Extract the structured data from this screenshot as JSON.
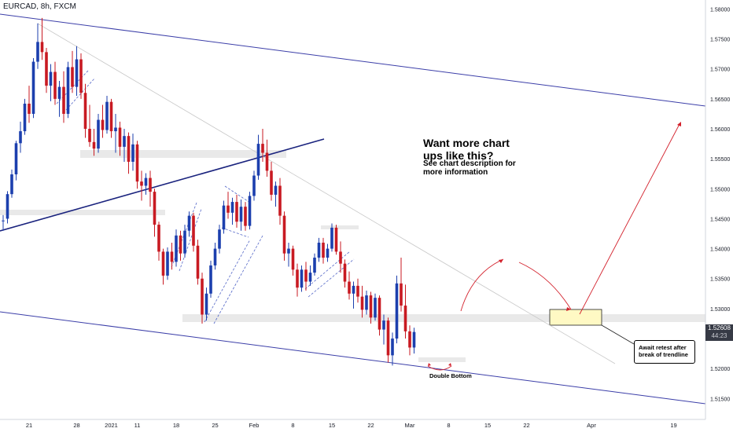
{
  "header": {
    "symbol_label": "EURCAD, 8h, FXCM"
  },
  "colors": {
    "bull": "#1c3fae",
    "bear": "#c81a22",
    "channel": "#3b3ea8",
    "trend": "#1a237e",
    "arrow": "#d3212c",
    "zone": "#e9e9e9",
    "target_fill": "#fff9c4"
  },
  "annotations": {
    "headline_line1": "Want more chart",
    "headline_line2": "ups like this?",
    "subline1": "See chart description for",
    "subline2": "more information",
    "callout_line1": "Await retest after",
    "callout_line2": "break of trendline",
    "double_bottom": "Double Bottom"
  },
  "price_tag": {
    "price": "1.52608",
    "countdown": "44:23"
  },
  "chart_data": {
    "type": "candlestick",
    "symbol": "EURCAD",
    "timeframe": "8h",
    "source": "FXCM",
    "ylim": [
      1.5115,
      1.5815
    ],
    "y_ticks": [
      "1.58000",
      "1.57500",
      "1.57000",
      "1.56500",
      "1.56000",
      "1.55500",
      "1.55000",
      "1.54500",
      "1.54000",
      "1.53500",
      "1.53000",
      "1.52500",
      "1.52000",
      "1.51500"
    ],
    "y_tick_values": [
      1.58,
      1.575,
      1.57,
      1.565,
      1.56,
      1.555,
      1.55,
      1.545,
      1.54,
      1.535,
      1.53,
      1.525,
      1.52,
      1.515
    ],
    "x_ticks": [
      "21",
      "28",
      "2021",
      "11",
      "18",
      "25",
      "Feb",
      "8",
      "15",
      "22",
      "Mar",
      "8",
      "15",
      "22",
      "Apr",
      "19"
    ],
    "x_tick_idx": [
      6,
      17,
      25,
      31,
      40,
      49,
      58,
      67,
      76,
      85,
      94,
      103,
      112,
      121,
      136,
      155
    ],
    "ohlc": [
      [
        1.5447,
        1.5456,
        1.543,
        1.5447
      ],
      [
        1.545,
        1.5496,
        1.5442,
        1.5491
      ],
      [
        1.5491,
        1.5532,
        1.5485,
        1.5524
      ],
      [
        1.5524,
        1.558,
        1.5514,
        1.5576
      ],
      [
        1.5576,
        1.5612,
        1.556,
        1.5596
      ],
      [
        1.5596,
        1.565,
        1.559,
        1.5642
      ],
      [
        1.5642,
        1.5672,
        1.561,
        1.5625
      ],
      [
        1.5625,
        1.5718,
        1.5618,
        1.5712
      ],
      [
        1.5712,
        1.5776,
        1.57,
        1.5745
      ],
      [
        1.5745,
        1.5785,
        1.5715,
        1.5728
      ],
      [
        1.5728,
        1.5735,
        1.566,
        1.5672
      ],
      [
        1.5672,
        1.5708,
        1.5646,
        1.5695
      ],
      [
        1.5695,
        1.5712,
        1.564,
        1.565
      ],
      [
        1.565,
        1.568,
        1.562,
        1.567
      ],
      [
        1.567,
        1.5696,
        1.561,
        1.5625
      ],
      [
        1.5625,
        1.5712,
        1.5618,
        1.5703
      ],
      [
        1.5703,
        1.573,
        1.566,
        1.567
      ],
      [
        1.567,
        1.5738,
        1.5655,
        1.5716
      ],
      [
        1.5716,
        1.5726,
        1.565,
        1.566
      ],
      [
        1.566,
        1.5675,
        1.5585,
        1.56
      ],
      [
        1.56,
        1.564,
        1.557,
        1.5578
      ],
      [
        1.5578,
        1.56,
        1.5555,
        1.5567
      ],
      [
        1.5567,
        1.5625,
        1.556,
        1.5615
      ],
      [
        1.5615,
        1.564,
        1.5585,
        1.5598
      ],
      [
        1.5598,
        1.5655,
        1.5592,
        1.5645
      ],
      [
        1.5645,
        1.565,
        1.5585,
        1.5596
      ],
      [
        1.5596,
        1.5625,
        1.556,
        1.5602
      ],
      [
        1.5602,
        1.5612,
        1.5555,
        1.557
      ],
      [
        1.557,
        1.56,
        1.5545,
        1.5588
      ],
      [
        1.5588,
        1.5594,
        1.5525,
        1.5545
      ],
      [
        1.5545,
        1.5592,
        1.553,
        1.5574
      ],
      [
        1.5574,
        1.558,
        1.55,
        1.5512
      ],
      [
        1.5512,
        1.553,
        1.548,
        1.5505
      ],
      [
        1.5505,
        1.5526,
        1.549,
        1.5518
      ],
      [
        1.5518,
        1.553,
        1.547,
        1.5495
      ],
      [
        1.5495,
        1.55,
        1.542,
        1.544
      ],
      [
        1.544,
        1.5445,
        1.538,
        1.5395
      ],
      [
        1.5395,
        1.54,
        1.534,
        1.5355
      ],
      [
        1.5355,
        1.5402,
        1.5348,
        1.5395
      ],
      [
        1.5395,
        1.541,
        1.5365,
        1.5378
      ],
      [
        1.5378,
        1.5432,
        1.537,
        1.5422
      ],
      [
        1.5422,
        1.543,
        1.538,
        1.5392
      ],
      [
        1.5392,
        1.544,
        1.5385,
        1.543
      ],
      [
        1.543,
        1.5462,
        1.542,
        1.5455
      ],
      [
        1.5455,
        1.546,
        1.5395,
        1.5405
      ],
      [
        1.5405,
        1.5415,
        1.534,
        1.535
      ],
      [
        1.535,
        1.536,
        1.5275,
        1.529
      ],
      [
        1.529,
        1.5335,
        1.528,
        1.5325
      ],
      [
        1.5325,
        1.538,
        1.5318,
        1.5372
      ],
      [
        1.5372,
        1.541,
        1.5365,
        1.54
      ],
      [
        1.54,
        1.544,
        1.5392,
        1.5432
      ],
      [
        1.5432,
        1.548,
        1.5425,
        1.5472
      ],
      [
        1.5472,
        1.5495,
        1.545,
        1.546
      ],
      [
        1.546,
        1.5485,
        1.544,
        1.5478
      ],
      [
        1.5478,
        1.549,
        1.5435,
        1.5445
      ],
      [
        1.5445,
        1.5482,
        1.543,
        1.547
      ],
      [
        1.547,
        1.5478,
        1.543,
        1.5438
      ],
      [
        1.5438,
        1.5495,
        1.5432,
        1.5488
      ],
      [
        1.5488,
        1.553,
        1.548,
        1.5522
      ],
      [
        1.5522,
        1.559,
        1.5515,
        1.5575
      ],
      [
        1.5575,
        1.56,
        1.5545,
        1.556
      ],
      [
        1.556,
        1.5582,
        1.552,
        1.553
      ],
      [
        1.553,
        1.5545,
        1.548,
        1.549
      ],
      [
        1.549,
        1.5512,
        1.547,
        1.5505
      ],
      [
        1.5505,
        1.5518,
        1.544,
        1.5455
      ],
      [
        1.5455,
        1.5462,
        1.538,
        1.5392
      ],
      [
        1.5392,
        1.541,
        1.537,
        1.54
      ],
      [
        1.54,
        1.5405,
        1.5355,
        1.5365
      ],
      [
        1.5365,
        1.5375,
        1.532,
        1.5335
      ],
      [
        1.5335,
        1.5372,
        1.5328,
        1.5365
      ],
      [
        1.5365,
        1.5378,
        1.533,
        1.5345
      ],
      [
        1.5345,
        1.5372,
        1.5338,
        1.536
      ],
      [
        1.536,
        1.5392,
        1.5355,
        1.5385
      ],
      [
        1.5385,
        1.5418,
        1.5378,
        1.541
      ],
      [
        1.541,
        1.5418,
        1.5375,
        1.5385
      ],
      [
        1.5385,
        1.5408,
        1.5378,
        1.54
      ],
      [
        1.54,
        1.5442,
        1.5395,
        1.5435
      ],
      [
        1.5435,
        1.544,
        1.539,
        1.5395
      ],
      [
        1.5395,
        1.5412,
        1.536,
        1.5375
      ],
      [
        1.5375,
        1.5382,
        1.5335,
        1.5345
      ],
      [
        1.5345,
        1.5362,
        1.5315,
        1.5325
      ],
      [
        1.5325,
        1.5345,
        1.53,
        1.5338
      ],
      [
        1.5338,
        1.535,
        1.531,
        1.532
      ],
      [
        1.532,
        1.5338,
        1.5285,
        1.5298
      ],
      [
        1.5298,
        1.533,
        1.529,
        1.5322
      ],
      [
        1.5322,
        1.5328,
        1.5275,
        1.5285
      ],
      [
        1.5285,
        1.5325,
        1.528,
        1.5318
      ],
      [
        1.5318,
        1.5322,
        1.5255,
        1.5265
      ],
      [
        1.5265,
        1.529,
        1.524,
        1.528
      ],
      [
        1.528,
        1.5285,
        1.521,
        1.5222
      ],
      [
        1.5222,
        1.526,
        1.5205,
        1.525
      ],
      [
        1.525,
        1.5355,
        1.5242,
        1.5342
      ],
      [
        1.5342,
        1.5385,
        1.5295,
        1.5305
      ],
      [
        1.5305,
        1.534,
        1.525,
        1.5262
      ],
      [
        1.5262,
        1.5272,
        1.5222,
        1.5235
      ],
      [
        1.5235,
        1.5268,
        1.5225,
        1.5261
      ]
    ]
  }
}
